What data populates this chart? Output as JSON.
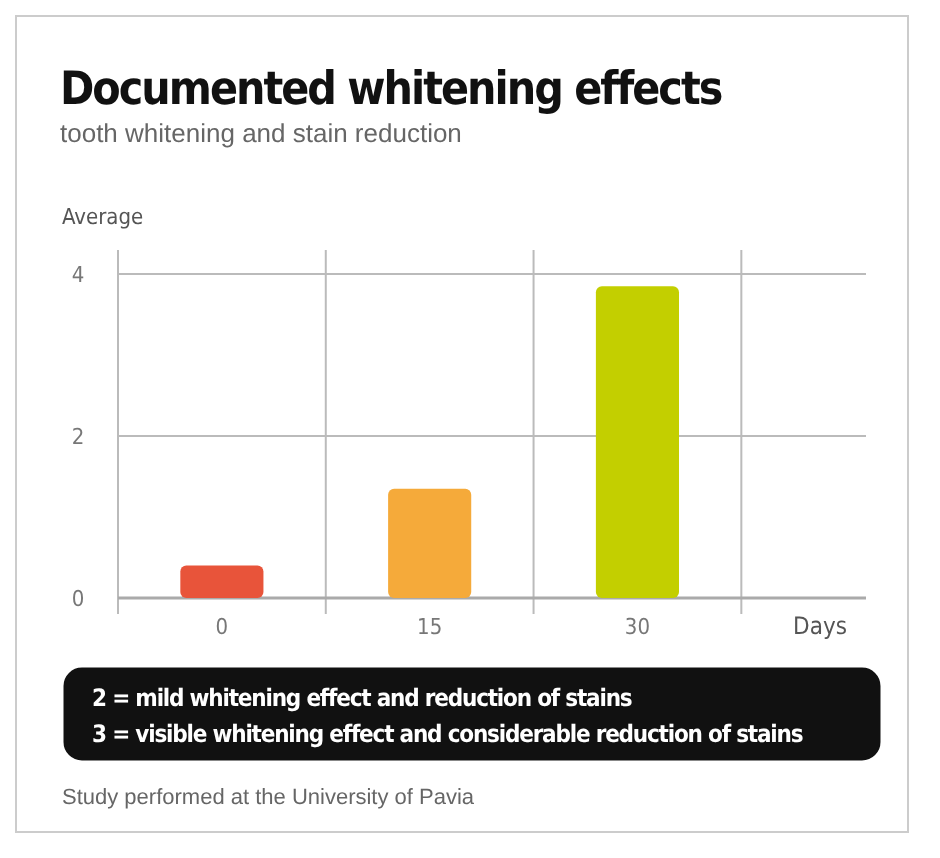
{
  "chart_data": {
    "type": "bar",
    "title": "Documented whitening effects",
    "subtitle": "tooth whitening and stain reduction",
    "ylabel": "Average",
    "xlabel": "Days",
    "categories": [
      "0",
      "15",
      "30"
    ],
    "values": [
      0.4,
      1.35,
      3.85
    ],
    "colors": [
      "#e8543a",
      "#f5aa3a",
      "#c3cf00"
    ],
    "ylim": [
      0,
      4
    ],
    "yticks": [
      0,
      2,
      4
    ],
    "grid": true,
    "annotations": [
      "2 = mild whitening effect and reduction of stains",
      "3 = visible whitening effect and considerable reduction of stains",
      "Study performed at the University of Pavia"
    ]
  }
}
